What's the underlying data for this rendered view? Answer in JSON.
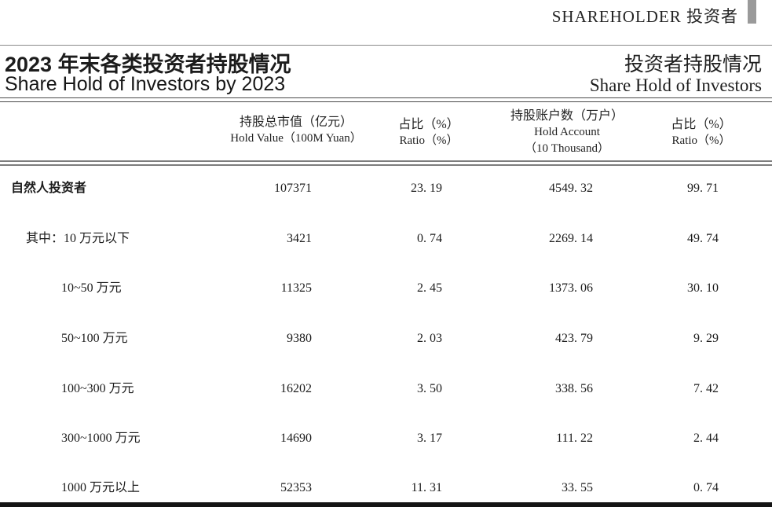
{
  "masthead": {
    "label": "SHAREHOLDER 投资者"
  },
  "title": {
    "zh": "2023 年末各类投资者持股情况",
    "en": "Share Hold of Investors by 2023",
    "right_zh": "投资者持股情况",
    "right_en": "Share Hold of Investors"
  },
  "table": {
    "columns": [
      {
        "zh": "持股总市值（亿元）",
        "en": "Hold Value（100M Yuan）"
      },
      {
        "zh": "占比（%）",
        "en": "Ratio（%）"
      },
      {
        "zh": "持股账户数（万户）",
        "en": "Hold Account",
        "en2": "（10 Thousand）"
      },
      {
        "zh": "占比（%）",
        "en": "Ratio（%）"
      }
    ],
    "rows": [
      {
        "label": "自然人投资者",
        "values": [
          "107371",
          "23. 19",
          "4549. 32",
          "99. 71"
        ]
      },
      {
        "label": "其中：10 万元以下",
        "values": [
          "3421",
          "0. 74",
          "2269. 14",
          "49. 74"
        ]
      },
      {
        "label": "10~50 万元",
        "values": [
          "11325",
          "2. 45",
          "1373. 06",
          "30. 10"
        ]
      },
      {
        "label": "50~100 万元",
        "values": [
          "9380",
          "2. 03",
          "423. 79",
          "9. 29"
        ]
      },
      {
        "label": "100~300 万元",
        "values": [
          "16202",
          "3. 50",
          "338. 56",
          "7. 42"
        ]
      },
      {
        "label": "300~1000 万元",
        "values": [
          "14690",
          "3. 17",
          "111. 22",
          "2. 44"
        ]
      },
      {
        "label": "1000 万元以上",
        "values": [
          "52353",
          "11. 31",
          "33. 55",
          "0. 74"
        ]
      }
    ]
  },
  "colors": {
    "corner_bar": "#9a9a9a",
    "rule_gray": "#7d7d7d",
    "bottom_bar": "#141414"
  }
}
